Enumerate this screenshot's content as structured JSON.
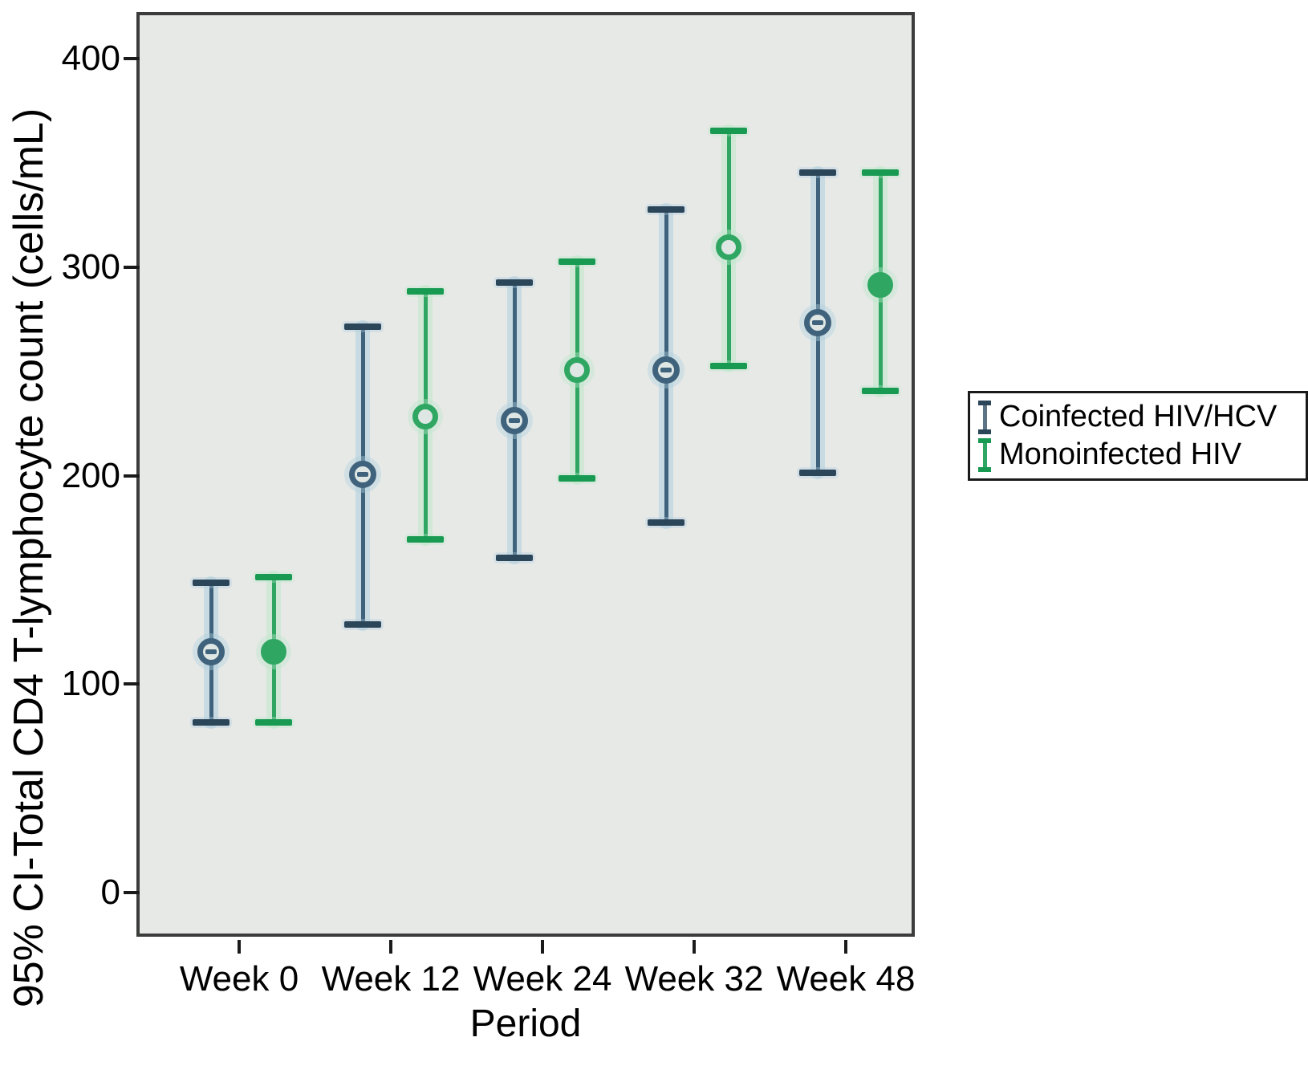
{
  "chart_data": {
    "type": "errorbar",
    "title": "",
    "xlabel": "Period",
    "ylabel": "95% CI-Total CD4 T-lymphocyte count (cells/mL)",
    "categories": [
      "Week 0",
      "Week 12",
      "Week 24",
      "Week 32",
      "Week 48"
    ],
    "y_ticks": [
      0,
      100,
      200,
      300,
      400
    ],
    "ylim": [
      -21,
      423
    ],
    "grid": false,
    "legend_position": "right",
    "plot_background": "#e7e9e6",
    "series": [
      {
        "name": "Coinfected HIV/HCV",
        "color": "#3f637c",
        "cap_color": "#2b4559",
        "halo_color": "#aecfdf",
        "marker": "open-circle-dash",
        "points": [
          {
            "category": "Week 0",
            "mean": 117,
            "ci_low": 83,
            "ci_high": 150
          },
          {
            "category": "Week 12",
            "mean": 202,
            "ci_low": 130,
            "ci_high": 273
          },
          {
            "category": "Week 24",
            "mean": 228,
            "ci_low": 162,
            "ci_high": 294
          },
          {
            "category": "Week 32",
            "mean": 252,
            "ci_low": 179,
            "ci_high": 329
          },
          {
            "category": "Week 48",
            "mean": 275,
            "ci_low": 203,
            "ci_high": 347
          }
        ]
      },
      {
        "name": "Monoinfected HIV",
        "color": "#2fa763",
        "cap_color": "#189a52",
        "halo_color": "#bfe7cb",
        "marker": "open-circle",
        "points": [
          {
            "category": "Week 0",
            "mean": 117,
            "ci_low": 83,
            "ci_high": 153,
            "filled": true
          },
          {
            "category": "Week 12",
            "mean": 230,
            "ci_low": 171,
            "ci_high": 290,
            "filled": false
          },
          {
            "category": "Week 24",
            "mean": 252,
            "ci_low": 200,
            "ci_high": 304,
            "filled": false
          },
          {
            "category": "Week 32",
            "mean": 311,
            "ci_low": 254,
            "ci_high": 367,
            "filled": false
          },
          {
            "category": "Week 48",
            "mean": 293,
            "ci_low": 242,
            "ci_high": 347,
            "filled": true
          }
        ]
      }
    ]
  },
  "legend": {
    "items": [
      {
        "label": "Coinfected HIV/HCV"
      },
      {
        "label": "Monoinfected HIV"
      }
    ]
  }
}
